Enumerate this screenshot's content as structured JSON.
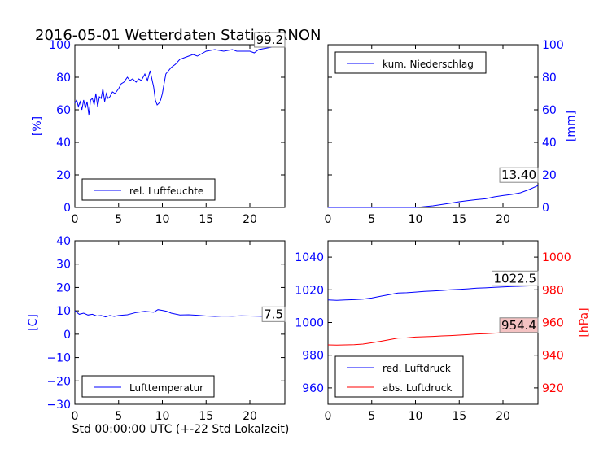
{
  "title": "2016-05-01 Wetterdaten Station RNON",
  "xlabel": "Std 00:00:00 UTC (+-22 Std Lokalzeit)",
  "colors": {
    "blue": "#0000ff",
    "red": "#ff0000",
    "black": "#000000"
  },
  "chart_data": [
    {
      "type": "line",
      "id": "humidity",
      "ylabel": "[%]",
      "xlim": [
        0,
        24
      ],
      "ylim": [
        0,
        100
      ],
      "xticks": [
        "0",
        "5",
        "10",
        "15",
        "20"
      ],
      "yticks": [
        "0",
        "20",
        "40",
        "60",
        "80",
        "100"
      ],
      "legend_position": "lower-left",
      "annotation": "99.2",
      "series": [
        {
          "name": "rel. Luftfeuchte",
          "color": "#0000ff",
          "x": [
            0,
            0.2,
            0.4,
            0.6,
            0.8,
            1.0,
            1.2,
            1.4,
            1.6,
            1.8,
            2.0,
            2.2,
            2.4,
            2.6,
            2.8,
            3.0,
            3.2,
            3.4,
            3.6,
            3.8,
            4.0,
            4.3,
            4.6,
            5.0,
            5.3,
            5.6,
            6.0,
            6.3,
            6.6,
            7.0,
            7.3,
            7.6,
            8.0,
            8.3,
            8.6,
            8.8,
            9.0,
            9.2,
            9.4,
            9.6,
            9.8,
            10.0,
            10.2,
            10.4,
            10.7,
            11.0,
            11.5,
            12.0,
            12.5,
            13.0,
            13.5,
            14.0,
            15.0,
            16.0,
            17.0,
            18.0,
            18.5,
            19.0,
            20.0,
            20.5,
            21.0,
            22.0,
            23.0,
            24.0
          ],
          "y": [
            64,
            66,
            62,
            65,
            60,
            66,
            61,
            65,
            57,
            66,
            67,
            63,
            70,
            62,
            68,
            67,
            73,
            65,
            70,
            67,
            68,
            71,
            70,
            73,
            76,
            77,
            80,
            78,
            79,
            77,
            79,
            78,
            82,
            78,
            84,
            79,
            74,
            66,
            63,
            64,
            66,
            70,
            76,
            82,
            84,
            86,
            88,
            91,
            92,
            93,
            94,
            93,
            96,
            97,
            96,
            97,
            96,
            96,
            96,
            95,
            97,
            98,
            99,
            99.2
          ]
        }
      ]
    },
    {
      "type": "line",
      "id": "precipitation",
      "ylabel": "[mm]",
      "xlim": [
        0,
        24
      ],
      "ylim": [
        0,
        100
      ],
      "xticks": [
        "0",
        "5",
        "10",
        "15",
        "20"
      ],
      "yticks": [
        "0",
        "20",
        "40",
        "60",
        "80",
        "100"
      ],
      "yaxis_side": "right",
      "legend_position": "upper-left",
      "annotation": "13.40",
      "series": [
        {
          "name": "kum. Niederschlag",
          "color": "#0000ff",
          "x": [
            0,
            5,
            8,
            10,
            10.5,
            11,
            12,
            13,
            14,
            15,
            16,
            17,
            18,
            19,
            20,
            21,
            22,
            23,
            24
          ],
          "y": [
            0,
            0,
            0,
            0,
            0.2,
            0.5,
            1.0,
            1.8,
            2.6,
            3.5,
            4.2,
            4.8,
            5.3,
            6.5,
            7.3,
            8.0,
            9.0,
            11.0,
            13.4
          ]
        }
      ]
    },
    {
      "type": "line",
      "id": "temperature",
      "ylabel": "[C]",
      "xlim": [
        0,
        24
      ],
      "ylim": [
        -30,
        40
      ],
      "xticks": [
        "0",
        "5",
        "10",
        "15",
        "20"
      ],
      "yticks": [
        "−30",
        "−20",
        "−10",
        "0",
        "10",
        "20",
        "30",
        "40"
      ],
      "legend_position": "lower-left",
      "annotation": "7.5",
      "series": [
        {
          "name": "Lufttemperatur",
          "color": "#0000ff",
          "x": [
            0,
            0.5,
            1,
            1.5,
            2,
            2.5,
            3,
            3.5,
            4,
            4.5,
            5,
            6,
            7,
            8,
            9,
            9.5,
            10,
            10.5,
            11,
            12,
            13,
            14,
            15,
            16,
            17,
            18,
            19,
            20,
            21,
            22,
            23,
            24
          ],
          "y": [
            10,
            8.5,
            9,
            8.2,
            8.5,
            7.8,
            8,
            7.4,
            8,
            7.6,
            8,
            8.3,
            9.3,
            9.8,
            9.4,
            10.5,
            10.2,
            9.8,
            9,
            8.2,
            8.3,
            8.1,
            7.8,
            7.6,
            7.8,
            7.7,
            7.9,
            7.8,
            7.7,
            7.6,
            7.5,
            7.5
          ]
        }
      ]
    },
    {
      "type": "line",
      "id": "pressure",
      "ylabel_right": "[hPa]",
      "xlim": [
        0,
        24
      ],
      "ylim_left": [
        950,
        1050
      ],
      "ylim_right": [
        910,
        1010
      ],
      "xticks": [
        "0",
        "5",
        "10",
        "15",
        "20"
      ],
      "yticks_left": [
        "960",
        "980",
        "1000",
        "1020",
        "1040"
      ],
      "yticks_right": [
        "920",
        "940",
        "960",
        "980",
        "1000"
      ],
      "legend_position": "lower-left",
      "annotations": [
        "1022.5",
        "954.4"
      ],
      "series": [
        {
          "name": "red. Luftdruck",
          "color": "#0000ff",
          "axis": "left",
          "x": [
            0,
            1,
            2,
            3,
            4,
            5,
            6,
            7,
            8,
            9,
            10,
            11,
            12,
            13,
            14,
            15,
            16,
            17,
            18,
            19,
            20,
            21,
            22,
            23,
            24
          ],
          "y": [
            1013.8,
            1013.6,
            1013.8,
            1014,
            1014.3,
            1015,
            1016,
            1017,
            1018,
            1018.2,
            1018.6,
            1019,
            1019.3,
            1019.6,
            1020,
            1020.3,
            1020.6,
            1021,
            1021.2,
            1021.5,
            1021.8,
            1022,
            1022.2,
            1022.4,
            1022.5
          ]
        },
        {
          "name": "abs. Luftdruck",
          "color": "#ff0000",
          "axis": "right",
          "x": [
            0,
            1,
            2,
            3,
            4,
            5,
            6,
            7,
            8,
            9,
            10,
            11,
            12,
            13,
            14,
            15,
            16,
            17,
            18,
            19,
            20,
            21,
            22,
            23,
            24
          ],
          "y": [
            946.3,
            946.2,
            946.3,
            946.4,
            946.8,
            947.6,
            948.5,
            949.5,
            950.5,
            950.6,
            951.1,
            951.3,
            951.5,
            951.8,
            952,
            952.3,
            952.6,
            953,
            953.2,
            953.5,
            953.8,
            954,
            954.1,
            954.3,
            954.4
          ]
        }
      ]
    }
  ]
}
